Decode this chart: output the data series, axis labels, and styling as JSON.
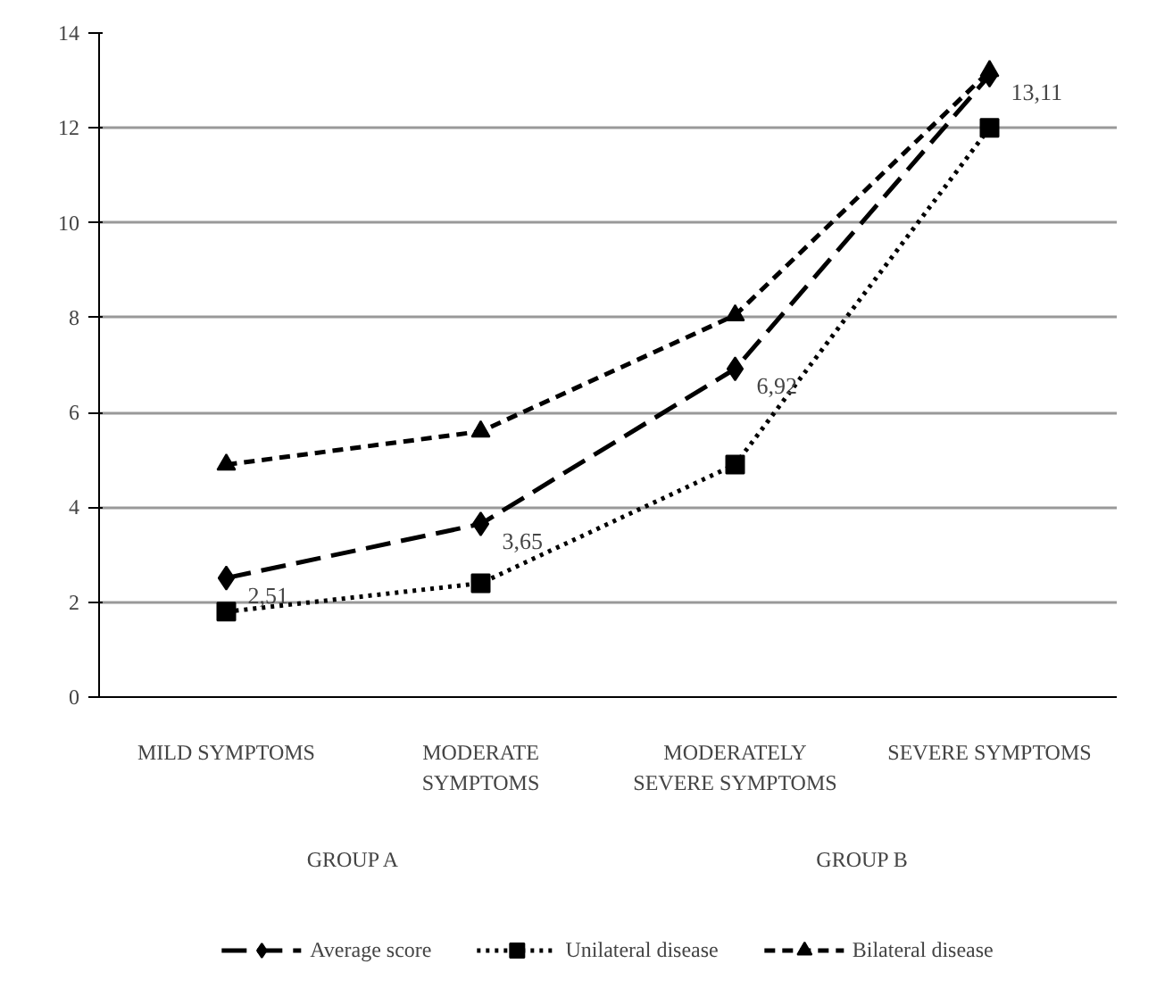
{
  "chart_data": {
    "type": "line",
    "categories": [
      "MILD SYMPTOMS",
      "MODERATE SYMPTOMS",
      "MODERATELY SEVERE SYMPTOMS",
      "SEVERE SYMPTOMS"
    ],
    "annotations": [
      "GROUP A",
      "GROUP B"
    ],
    "series": [
      {
        "name": "Average score",
        "color": "#000000",
        "marker": "diamond",
        "line_style": "long dashed",
        "values": [
          2.51,
          3.65,
          6.92,
          13.11
        ],
        "value_labels": [
          "2,51",
          "3,65",
          "6,92",
          "13,11"
        ]
      },
      {
        "name": "Unilateral disease",
        "color": "#000000",
        "marker": "square",
        "line_style": "dotted",
        "values": [
          1.8,
          2.4,
          4.9,
          12.0
        ]
      },
      {
        "name": "Bilateral disease",
        "color": "#000000",
        "marker": "triangle",
        "line_style": "dashed",
        "values": [
          4.9,
          5.6,
          8.05,
          13.2
        ]
      }
    ],
    "ylim": [
      0,
      14
    ],
    "yticks": [
      0,
      2,
      4,
      6,
      8,
      10,
      12,
      14
    ],
    "grid": "y",
    "legend": "bottom"
  }
}
